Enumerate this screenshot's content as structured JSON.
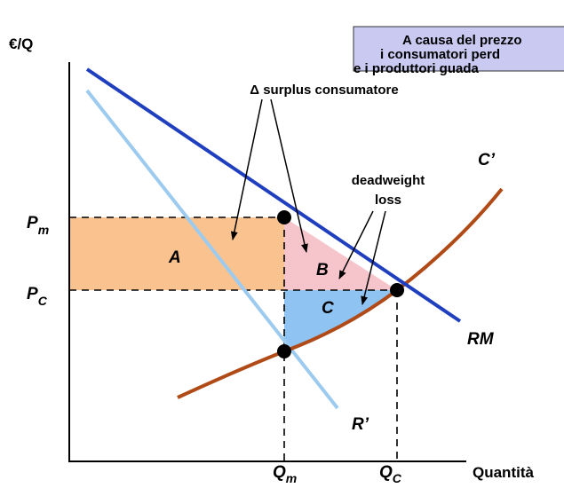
{
  "axes": {
    "y_label": "€/Q",
    "x_label": "Quantità"
  },
  "note": {
    "lines": [
      "A causa del prezzo",
      "i consumatori perd",
      "e i produttori guada"
    ]
  },
  "prices": [
    {
      "main": "P",
      "sub": "m"
    },
    {
      "main": "P",
      "sub": "C"
    }
  ],
  "quantities": [
    {
      "main": "Q",
      "sub": "m"
    },
    {
      "main": "Q",
      "sub": "C"
    }
  ],
  "areas": [
    "A",
    "B",
    "C"
  ],
  "curves": {
    "demand": "RM",
    "marginal_revenue": "R’",
    "marginal_cost": "C’"
  },
  "annotations": {
    "consumer": "Δ surplus consumatore",
    "deadweight": [
      "deadweight",
      "loss"
    ]
  }
}
